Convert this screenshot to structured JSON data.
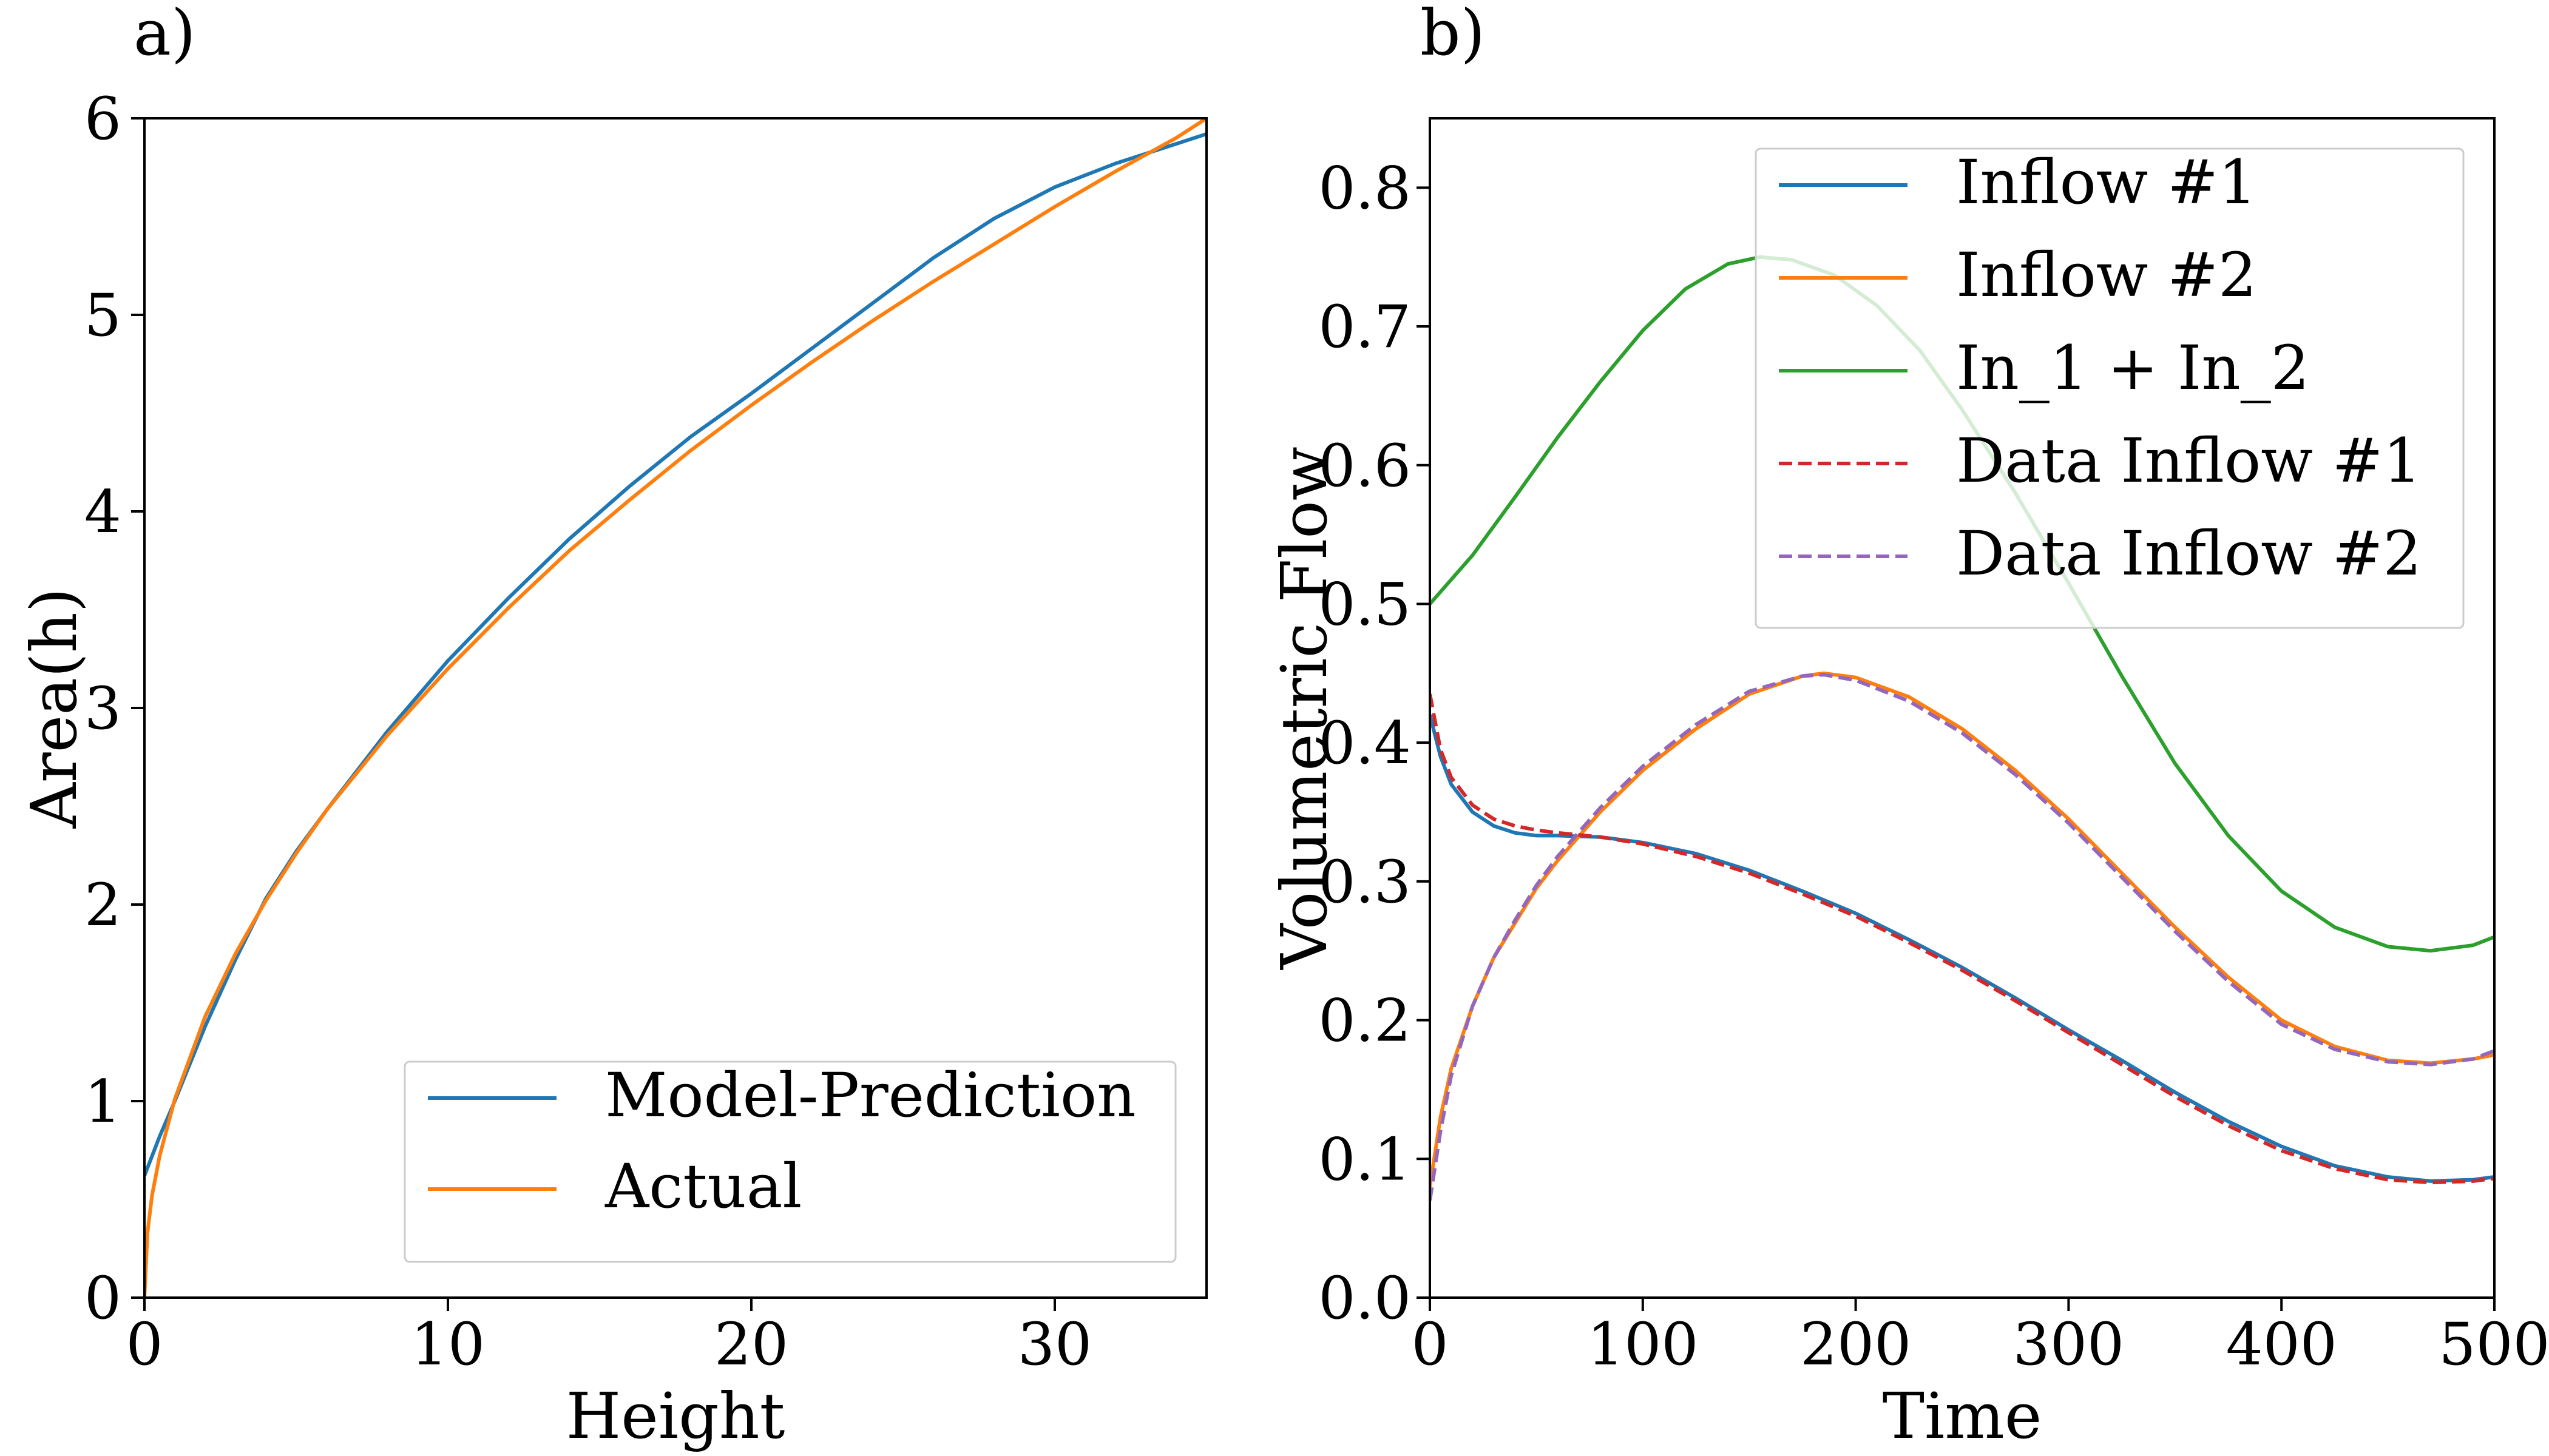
{
  "chart_data": [
    {
      "type": "line",
      "panel_label": "a)",
      "xlabel": "Height",
      "ylabel": "Area(h)",
      "xlim": [
        0,
        35
      ],
      "ylim": [
        0,
        6
      ],
      "xticks": [
        0,
        10,
        20,
        30
      ],
      "xtick_labels": [
        "0",
        "10",
        "20",
        "30"
      ],
      "yticks": [
        0,
        1,
        2,
        3,
        4,
        5,
        6
      ],
      "ytick_labels": [
        "0",
        "1",
        "2",
        "3",
        "4",
        "5",
        "6"
      ],
      "grid": false,
      "legend_position": "bottom-right",
      "series": [
        {
          "name": "Model-Prediction",
          "color": "#1f77b4",
          "style": "solid",
          "x": [
            0,
            0.5,
            1,
            2,
            3,
            4,
            5,
            6,
            8,
            10,
            12,
            14,
            16,
            18,
            20,
            22,
            24,
            26,
            28,
            30,
            32,
            34,
            35
          ],
          "y": [
            0.62,
            0.82,
            1.0,
            1.38,
            1.72,
            2.03,
            2.27,
            2.48,
            2.88,
            3.24,
            3.56,
            3.86,
            4.13,
            4.38,
            4.6,
            4.83,
            5.06,
            5.29,
            5.49,
            5.65,
            5.77,
            5.87,
            5.92
          ]
        },
        {
          "name": "Actual",
          "color": "#ff7f0e",
          "style": "solid",
          "x": [
            0,
            0.1,
            0.25,
            0.5,
            1,
            2,
            3,
            4,
            5,
            6,
            8,
            10,
            12,
            14,
            16,
            18,
            20,
            22,
            24,
            26,
            28,
            30,
            32,
            34,
            35
          ],
          "y": [
            0,
            0.33,
            0.52,
            0.72,
            1.01,
            1.43,
            1.75,
            2.02,
            2.26,
            2.48,
            2.86,
            3.2,
            3.51,
            3.8,
            4.06,
            4.31,
            4.54,
            4.76,
            4.97,
            5.17,
            5.36,
            5.55,
            5.73,
            5.9,
            6.0
          ]
        }
      ]
    },
    {
      "type": "line",
      "panel_label": "b)",
      "xlabel": "Time",
      "ylabel": "Volumetric Flow",
      "xlim": [
        0,
        500
      ],
      "ylim": [
        0,
        0.85
      ],
      "xticks": [
        0,
        100,
        200,
        300,
        400,
        500
      ],
      "xtick_labels": [
        "0",
        "100",
        "200",
        "300",
        "400",
        "500"
      ],
      "yticks": [
        0,
        0.1,
        0.2,
        0.3,
        0.4,
        0.5,
        0.6,
        0.7,
        0.8
      ],
      "ytick_labels": [
        "0.0",
        "0.1",
        "0.2",
        "0.3",
        "0.4",
        "0.5",
        "0.6",
        "0.7",
        "0.8"
      ],
      "grid": false,
      "legend_position": "top-right",
      "series": [
        {
          "name": "Inflow #1",
          "color": "#1f77b4",
          "style": "solid",
          "x": [
            0,
            5,
            10,
            20,
            30,
            40,
            50,
            60,
            80,
            100,
            125,
            150,
            175,
            200,
            225,
            250,
            275,
            300,
            325,
            350,
            375,
            400,
            425,
            450,
            470,
            490,
            500
          ],
          "y": [
            0.42,
            0.39,
            0.37,
            0.35,
            0.34,
            0.335,
            0.333,
            0.333,
            0.332,
            0.328,
            0.32,
            0.308,
            0.293,
            0.277,
            0.258,
            0.238,
            0.216,
            0.193,
            0.171,
            0.148,
            0.127,
            0.109,
            0.095,
            0.087,
            0.084,
            0.085,
            0.087
          ]
        },
        {
          "name": "Inflow #2",
          "color": "#ff7f0e",
          "style": "solid",
          "x": [
            0,
            5,
            10,
            20,
            30,
            40,
            50,
            60,
            80,
            100,
            125,
            150,
            175,
            185,
            200,
            225,
            250,
            275,
            300,
            325,
            350,
            375,
            400,
            425,
            450,
            470,
            490,
            500
          ],
          "y": [
            0.08,
            0.13,
            0.165,
            0.21,
            0.245,
            0.27,
            0.295,
            0.315,
            0.35,
            0.38,
            0.41,
            0.435,
            0.448,
            0.45,
            0.447,
            0.433,
            0.41,
            0.38,
            0.345,
            0.306,
            0.267,
            0.231,
            0.2,
            0.181,
            0.171,
            0.169,
            0.172,
            0.175
          ]
        },
        {
          "name": "In_1 + In_2",
          "color": "#2ca02c",
          "style": "solid",
          "x": [
            0,
            20,
            40,
            60,
            80,
            100,
            120,
            140,
            155,
            170,
            190,
            210,
            230,
            250,
            275,
            300,
            325,
            350,
            375,
            400,
            425,
            450,
            470,
            490,
            500
          ],
          "y": [
            0.5,
            0.535,
            0.577,
            0.62,
            0.66,
            0.697,
            0.727,
            0.745,
            0.75,
            0.748,
            0.737,
            0.715,
            0.683,
            0.64,
            0.58,
            0.515,
            0.448,
            0.385,
            0.333,
            0.293,
            0.267,
            0.253,
            0.25,
            0.254,
            0.26
          ]
        },
        {
          "name": "Data Inflow #1",
          "color": "#d62728",
          "style": "dashed",
          "x": [
            0,
            5,
            10,
            20,
            30,
            40,
            50,
            60,
            80,
            100,
            125,
            150,
            175,
            200,
            225,
            250,
            275,
            300,
            325,
            350,
            375,
            400,
            425,
            450,
            470,
            490,
            500
          ],
          "y": [
            0.435,
            0.395,
            0.375,
            0.355,
            0.345,
            0.34,
            0.337,
            0.335,
            0.332,
            0.327,
            0.318,
            0.306,
            0.291,
            0.275,
            0.256,
            0.236,
            0.214,
            0.191,
            0.168,
            0.145,
            0.124,
            0.106,
            0.093,
            0.085,
            0.083,
            0.084,
            0.086
          ]
        },
        {
          "name": "Data Inflow #2",
          "color": "#9467bd",
          "style": "dashed",
          "x": [
            0,
            5,
            10,
            20,
            30,
            40,
            50,
            60,
            80,
            100,
            125,
            150,
            175,
            185,
            200,
            225,
            250,
            275,
            300,
            325,
            350,
            375,
            400,
            425,
            450,
            470,
            490,
            500
          ],
          "y": [
            0.07,
            0.12,
            0.16,
            0.21,
            0.245,
            0.272,
            0.297,
            0.318,
            0.353,
            0.383,
            0.413,
            0.437,
            0.448,
            0.449,
            0.445,
            0.43,
            0.407,
            0.377,
            0.342,
            0.303,
            0.264,
            0.228,
            0.197,
            0.179,
            0.17,
            0.168,
            0.172,
            0.178
          ]
        }
      ]
    }
  ]
}
